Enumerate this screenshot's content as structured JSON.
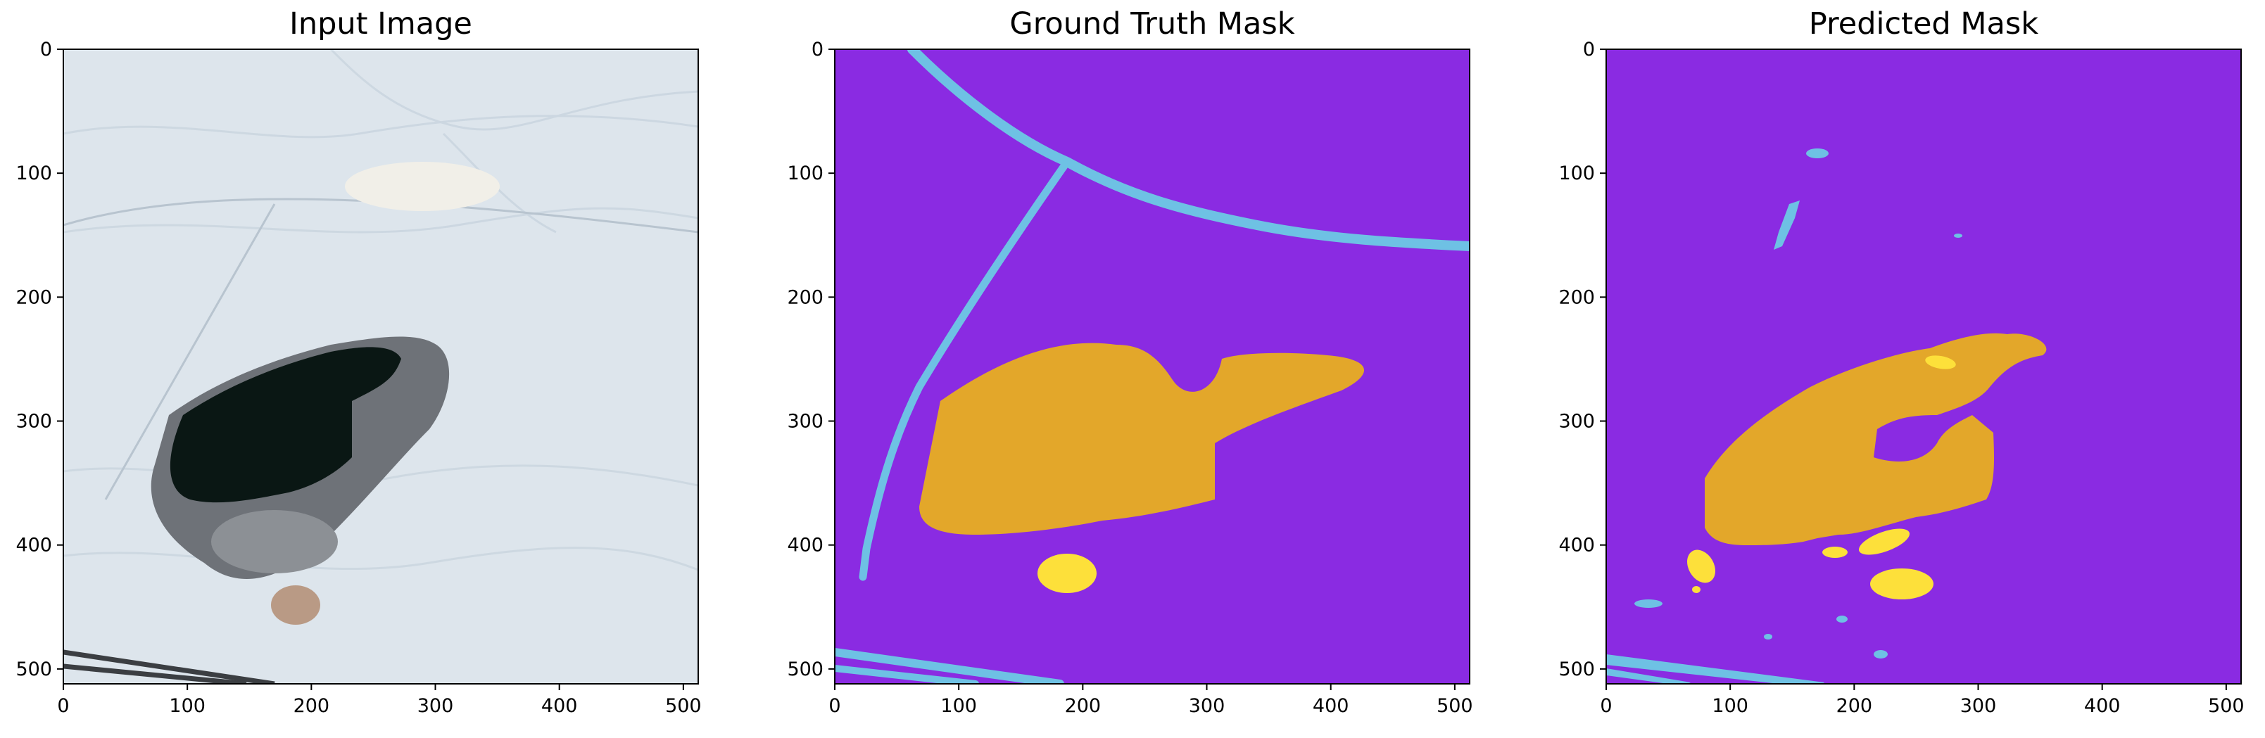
{
  "panels": [
    {
      "id": "input",
      "title": "Input Image"
    },
    {
      "id": "gt",
      "title": "Ground Truth Mask"
    },
    {
      "id": "pred",
      "title": "Predicted Mask"
    }
  ],
  "axes": {
    "xticks": [
      "0",
      "100",
      "200",
      "300",
      "400",
      "500"
    ],
    "yticks": [
      "0",
      "100",
      "200",
      "300",
      "400",
      "500"
    ],
    "extent": [
      0,
      512
    ]
  },
  "colors": {
    "background_class": "#8a2be2",
    "road_class": "#6ec1e4",
    "water_body_class": "#e3a72a",
    "small_pond_class": "#fde03a",
    "terrain": "#dde5ec",
    "dark_water": "#0a1714",
    "rock": "#6e7278"
  }
}
